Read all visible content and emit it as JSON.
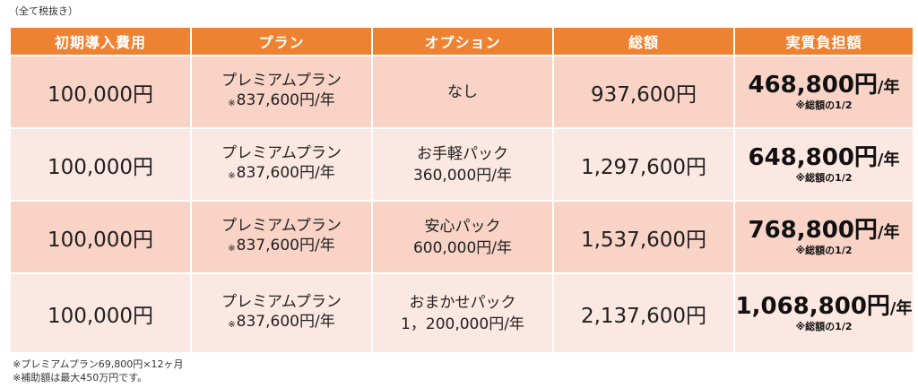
{
  "top_note": "（全て税抜き）",
  "headers": [
    "初期導入費用",
    "プラン",
    "オプション",
    "総額",
    "実質負担額"
  ],
  "rows": [
    {
      "initial": "100,000円",
      "plan_name": "プレミアムプラン",
      "plan_mark": "※",
      "plan_price": "837,600円/年",
      "option_line1": "なし",
      "option_line2": "",
      "total": "937,600円",
      "real_amount": "468,800円",
      "real_unit": "/年",
      "real_note": "※総額の1/2"
    },
    {
      "initial": "100,000円",
      "plan_name": "プレミアムプラン",
      "plan_mark": "※",
      "plan_price": "837,600円/年",
      "option_line1": "お手軽パック",
      "option_line2": "360,000円/年",
      "total": "1,297,600円",
      "real_amount": "648,800円",
      "real_unit": "/年",
      "real_note": "※総額の1/2"
    },
    {
      "initial": "100,000円",
      "plan_name": "プレミアムプラン",
      "plan_mark": "※",
      "plan_price": "837,600円/年",
      "option_line1": "安心パック",
      "option_line2": "600,000円/年",
      "total": "1,537,600円",
      "real_amount": "768,800円",
      "real_unit": "/年",
      "real_note": "※総額の1/2"
    },
    {
      "initial": "100,000円",
      "plan_name": "プレミアムプラン",
      "plan_mark": "※",
      "plan_price": "837,600円/年",
      "option_line1": "おまかせパック",
      "option_line2": "1，200,000円/年",
      "total": "2,137,600円",
      "real_amount": "1,068,800円",
      "real_unit": "/年",
      "real_note": "※総額の1/2"
    }
  ],
  "footnotes": [
    "※プレミアムプラン69,800円×12ヶ月",
    "※補助額は最大450万円です。"
  ],
  "colors": {
    "header_bg": "#ee8233",
    "header_text": "#ffffff",
    "row_dark": "#f8d3c6",
    "row_light": "#fce8e2"
  }
}
